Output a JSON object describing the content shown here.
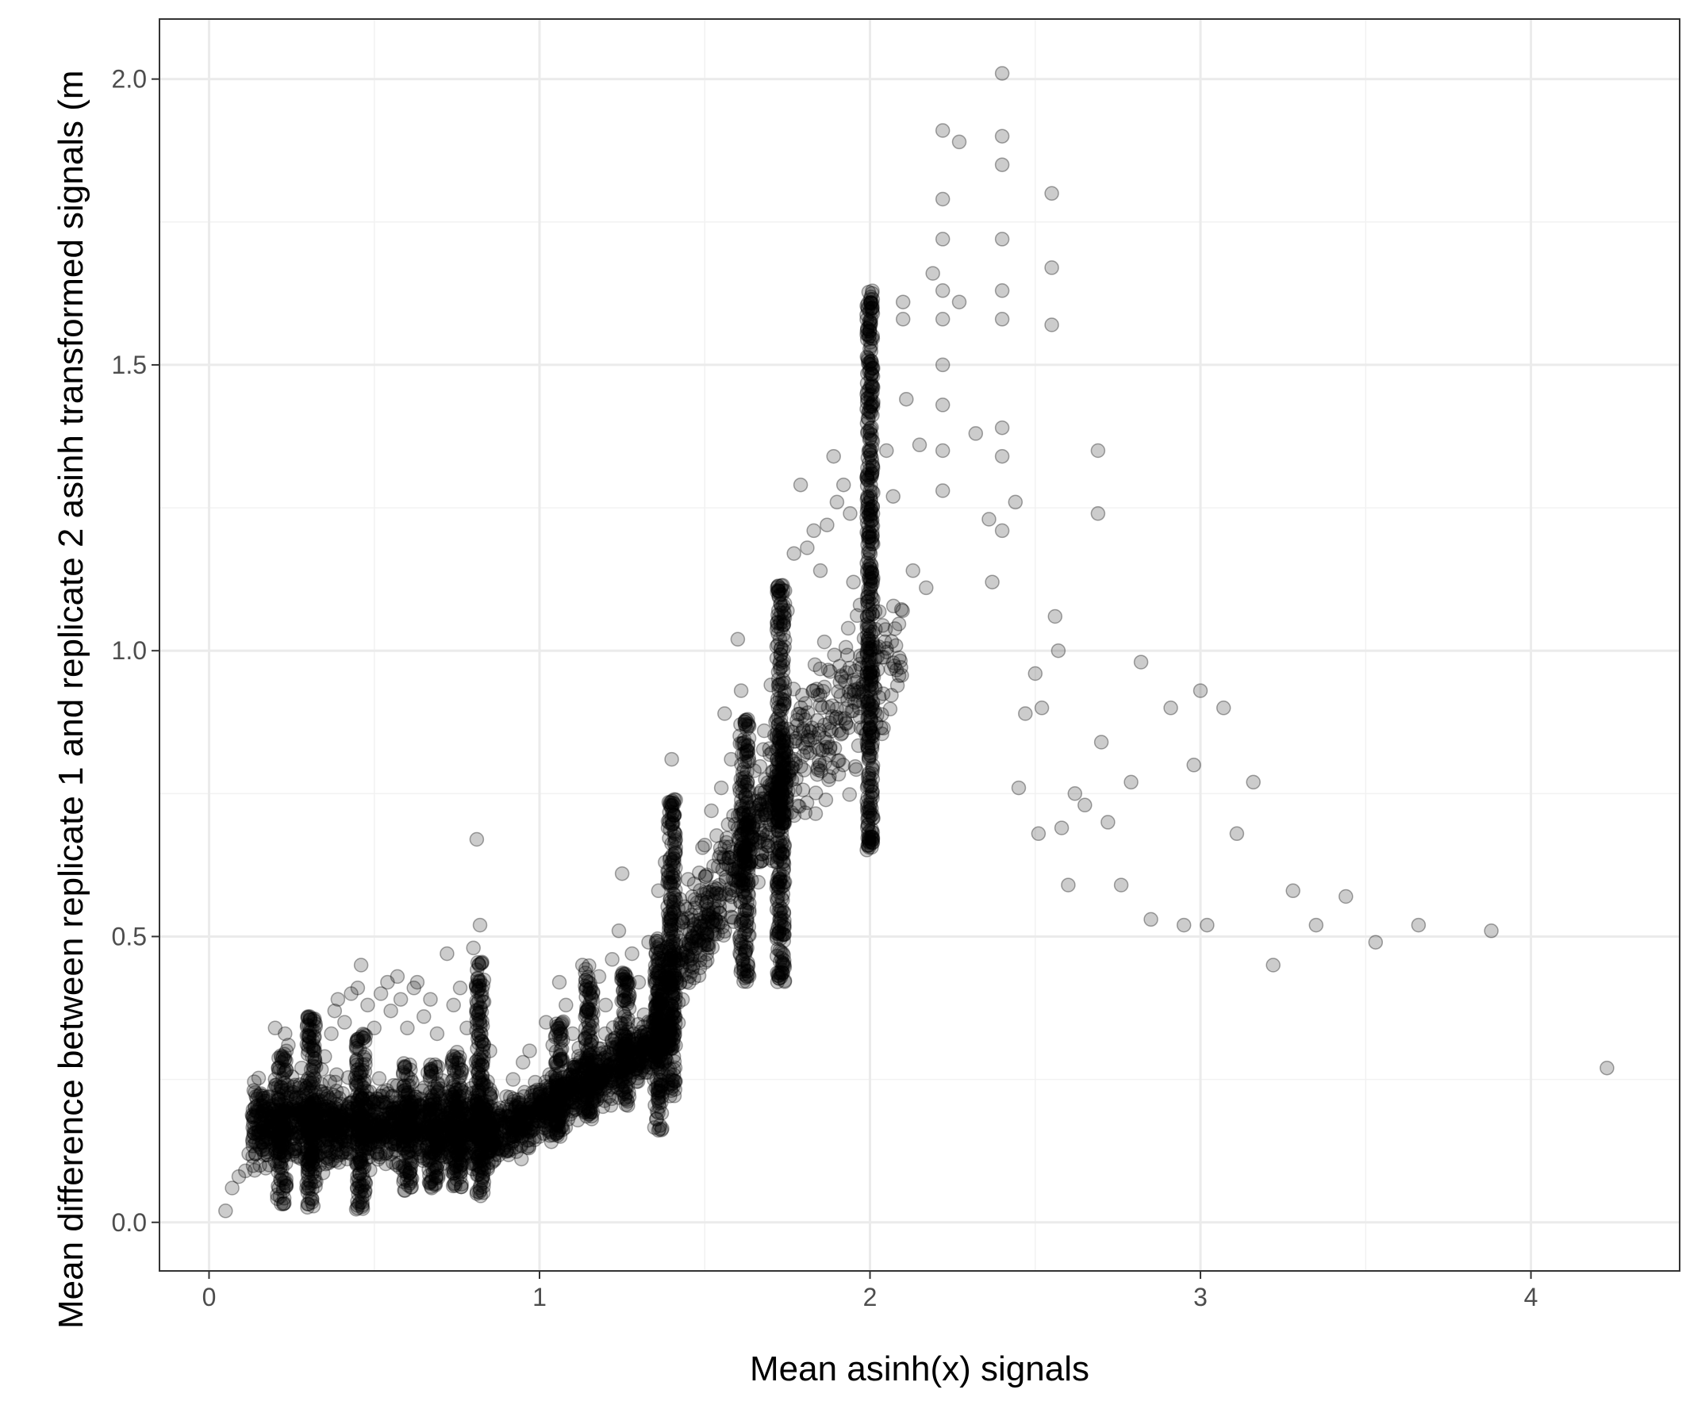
{
  "chart_data": {
    "type": "scatter",
    "title": "",
    "xlabel": "Mean asinh(x) signals",
    "ylabel": "Mean difference between replicate 1 and replicate 2 asinh transformed signals (m",
    "xlim": [
      -0.15,
      4.45
    ],
    "ylim": [
      -0.085,
      2.105
    ],
    "x_ticks": [
      0,
      1,
      2,
      3,
      4
    ],
    "x_tick_labels": [
      "0",
      "1",
      "2",
      "3",
      "4"
    ],
    "y_ticks": [
      0.0,
      0.5,
      1.0,
      1.5,
      2.0
    ],
    "y_tick_labels": [
      "0.0",
      "0.5",
      "1.0",
      "1.5",
      "2.0"
    ],
    "grid": true,
    "legend": "none",
    "point_color": "#000000",
    "point_opacity": 0.2,
    "series": [
      {
        "points": [
          [
            0.05,
            0.02
          ],
          [
            0.07,
            0.06
          ],
          [
            0.09,
            0.08
          ],
          [
            0.11,
            0.09
          ],
          [
            0.12,
            0.12
          ],
          [
            0.14,
            0.14
          ],
          [
            0.15,
            0.16
          ],
          [
            0.17,
            0.19
          ],
          [
            0.18,
            0.22
          ],
          [
            0.2,
            0.25
          ],
          [
            0.2,
            0.34
          ],
          [
            0.22,
            0.28
          ],
          [
            0.23,
            0.33
          ],
          [
            0.24,
            0.31
          ],
          [
            0.26,
            0.24
          ],
          [
            0.28,
            0.27
          ],
          [
            0.3,
            0.36
          ],
          [
            0.32,
            0.3
          ],
          [
            0.35,
            0.29
          ],
          [
            0.37,
            0.33
          ],
          [
            0.38,
            0.37
          ],
          [
            0.39,
            0.39
          ],
          [
            0.41,
            0.35
          ],
          [
            0.43,
            0.4
          ],
          [
            0.45,
            0.41
          ],
          [
            0.46,
            0.45
          ],
          [
            0.48,
            0.38
          ],
          [
            0.5,
            0.34
          ],
          [
            0.52,
            0.4
          ],
          [
            0.54,
            0.42
          ],
          [
            0.55,
            0.37
          ],
          [
            0.57,
            0.43
          ],
          [
            0.58,
            0.39
          ],
          [
            0.6,
            0.34
          ],
          [
            0.62,
            0.41
          ],
          [
            0.63,
            0.42
          ],
          [
            0.65,
            0.36
          ],
          [
            0.67,
            0.39
          ],
          [
            0.69,
            0.33
          ],
          [
            0.72,
            0.47
          ],
          [
            0.74,
            0.38
          ],
          [
            0.76,
            0.41
          ],
          [
            0.78,
            0.34
          ],
          [
            0.8,
            0.48
          ],
          [
            0.82,
            0.52
          ],
          [
            0.81,
            0.67
          ],
          [
            0.85,
            0.3
          ],
          [
            0.88,
            0.2
          ],
          [
            0.9,
            0.22
          ],
          [
            0.92,
            0.25
          ],
          [
            0.95,
            0.28
          ],
          [
            0.97,
            0.3
          ],
          [
            1.0,
            0.22
          ],
          [
            1.02,
            0.35
          ],
          [
            1.04,
            0.31
          ],
          [
            1.06,
            0.42
          ],
          [
            1.08,
            0.38
          ],
          [
            1.1,
            0.33
          ],
          [
            1.13,
            0.45
          ],
          [
            1.15,
            0.4
          ],
          [
            1.18,
            0.43
          ],
          [
            1.2,
            0.38
          ],
          [
            1.22,
            0.46
          ],
          [
            1.24,
            0.51
          ],
          [
            1.25,
            0.61
          ],
          [
            1.28,
            0.47
          ],
          [
            1.3,
            0.42
          ],
          [
            1.33,
            0.49
          ],
          [
            1.36,
            0.58
          ],
          [
            1.38,
            0.63
          ],
          [
            1.4,
            0.81
          ],
          [
            1.42,
            0.52
          ],
          [
            1.45,
            0.6
          ],
          [
            1.47,
            0.55
          ],
          [
            1.5,
            0.66
          ],
          [
            1.52,
            0.72
          ],
          [
            1.55,
            0.76
          ],
          [
            1.56,
            0.89
          ],
          [
            1.58,
            0.81
          ],
          [
            1.6,
            1.02
          ],
          [
            1.61,
            0.93
          ],
          [
            1.63,
            0.88
          ],
          [
            1.65,
            0.79
          ],
          [
            1.68,
            0.86
          ],
          [
            1.7,
            0.94
          ],
          [
            1.72,
            1.05
          ],
          [
            1.75,
            1.07
          ],
          [
            1.77,
            1.17
          ],
          [
            1.79,
            1.29
          ],
          [
            1.81,
            1.18
          ],
          [
            1.83,
            1.21
          ],
          [
            1.85,
            1.14
          ],
          [
            1.87,
            1.22
          ],
          [
            1.89,
            1.34
          ],
          [
            1.9,
            1.26
          ],
          [
            1.92,
            1.29
          ],
          [
            1.94,
            1.24
          ],
          [
            1.95,
            1.12
          ],
          [
            1.97,
            1.08
          ],
          [
            2.05,
            1.35
          ],
          [
            2.07,
            1.27
          ],
          [
            2.1,
            1.61
          ],
          [
            2.1,
            1.58
          ],
          [
            2.11,
            1.44
          ],
          [
            2.13,
            1.14
          ],
          [
            2.15,
            1.36
          ],
          [
            2.17,
            1.11
          ],
          [
            2.19,
            1.66
          ],
          [
            2.22,
            1.91
          ],
          [
            2.22,
            1.79
          ],
          [
            2.22,
            1.72
          ],
          [
            2.22,
            1.63
          ],
          [
            2.22,
            1.58
          ],
          [
            2.22,
            1.5
          ],
          [
            2.22,
            1.43
          ],
          [
            2.22,
            1.35
          ],
          [
            2.22,
            1.28
          ],
          [
            2.27,
            1.89
          ],
          [
            2.27,
            1.61
          ],
          [
            2.32,
            1.38
          ],
          [
            2.36,
            1.23
          ],
          [
            2.37,
            1.12
          ],
          [
            2.4,
            2.01
          ],
          [
            2.4,
            1.9
          ],
          [
            2.4,
            1.85
          ],
          [
            2.4,
            1.72
          ],
          [
            2.4,
            1.63
          ],
          [
            2.4,
            1.58
          ],
          [
            2.4,
            1.39
          ],
          [
            2.4,
            1.34
          ],
          [
            2.4,
            1.21
          ],
          [
            2.44,
            1.26
          ],
          [
            2.45,
            0.76
          ],
          [
            2.47,
            0.89
          ],
          [
            2.5,
            0.96
          ],
          [
            2.51,
            0.68
          ],
          [
            2.52,
            0.9
          ],
          [
            2.55,
            1.8
          ],
          [
            2.55,
            1.67
          ],
          [
            2.55,
            1.57
          ],
          [
            2.56,
            1.06
          ],
          [
            2.57,
            1.0
          ],
          [
            2.58,
            0.69
          ],
          [
            2.6,
            0.59
          ],
          [
            2.62,
            0.75
          ],
          [
            2.65,
            0.73
          ],
          [
            2.69,
            1.35
          ],
          [
            2.69,
            1.24
          ],
          [
            2.7,
            0.84
          ],
          [
            2.72,
            0.7
          ],
          [
            2.76,
            0.59
          ],
          [
            2.79,
            0.77
          ],
          [
            2.82,
            0.98
          ],
          [
            2.85,
            0.53
          ],
          [
            2.91,
            0.9
          ],
          [
            2.95,
            0.52
          ],
          [
            2.98,
            0.8
          ],
          [
            3.0,
            0.93
          ],
          [
            3.02,
            0.52
          ],
          [
            3.07,
            0.9
          ],
          [
            3.11,
            0.68
          ],
          [
            3.16,
            0.77
          ],
          [
            3.22,
            0.45
          ],
          [
            3.28,
            0.58
          ],
          [
            3.35,
            0.52
          ],
          [
            3.44,
            0.57
          ],
          [
            3.53,
            0.49
          ],
          [
            3.66,
            0.52
          ],
          [
            3.88,
            0.51
          ],
          [
            4.23,
            0.27
          ]
        ]
      }
    ],
    "dense_bands": [
      {
        "x": 0.22,
        "y_range": [
          0.03,
          0.3
        ],
        "width": 0.03
      },
      {
        "x": 0.31,
        "y_range": [
          0.02,
          0.36
        ],
        "width": 0.03
      },
      {
        "x": 0.46,
        "y_range": [
          0.02,
          0.33
        ],
        "width": 0.03
      },
      {
        "x": 0.6,
        "y_range": [
          0.05,
          0.28
        ],
        "width": 0.03
      },
      {
        "x": 0.68,
        "y_range": [
          0.06,
          0.28
        ],
        "width": 0.03
      },
      {
        "x": 0.75,
        "y_range": [
          0.06,
          0.3
        ],
        "width": 0.03
      },
      {
        "x": 0.82,
        "y_range": [
          0.04,
          0.46
        ],
        "width": 0.025
      },
      {
        "x": 1.06,
        "y_range": [
          0.15,
          0.36
        ],
        "width": 0.025
      },
      {
        "x": 1.15,
        "y_range": [
          0.18,
          0.45
        ],
        "width": 0.025
      },
      {
        "x": 1.26,
        "y_range": [
          0.2,
          0.44
        ],
        "width": 0.025
      },
      {
        "x": 1.36,
        "y_range": [
          0.16,
          0.5
        ],
        "width": 0.025
      },
      {
        "x": 1.4,
        "y_range": [
          0.22,
          0.74
        ],
        "width": 0.025
      },
      {
        "x": 1.62,
        "y_range": [
          0.42,
          0.88
        ],
        "width": 0.03
      },
      {
        "x": 1.73,
        "y_range": [
          0.42,
          1.12
        ],
        "width": 0.025
      },
      {
        "x": 2.0,
        "y_range": [
          0.65,
          1.63
        ],
        "width": 0.02
      }
    ],
    "cloud_regions": [
      {
        "x_range": [
          0.13,
          0.86
        ],
        "y_center": 0.17,
        "y_spread": 0.12,
        "count": 1400
      },
      {
        "x_range": [
          0.84,
          1.4
        ],
        "y_center_start": 0.14,
        "y_center_end": 0.33,
        "y_spread": 0.09,
        "count": 900
      },
      {
        "x_range": [
          1.35,
          1.75
        ],
        "y_center_start": 0.38,
        "y_center_end": 0.78,
        "y_spread": 0.16,
        "count": 500
      },
      {
        "x_range": [
          1.7,
          2.1
        ],
        "y_center_start": 0.78,
        "y_center_end": 1.0,
        "y_spread": 0.22,
        "count": 260
      }
    ]
  }
}
